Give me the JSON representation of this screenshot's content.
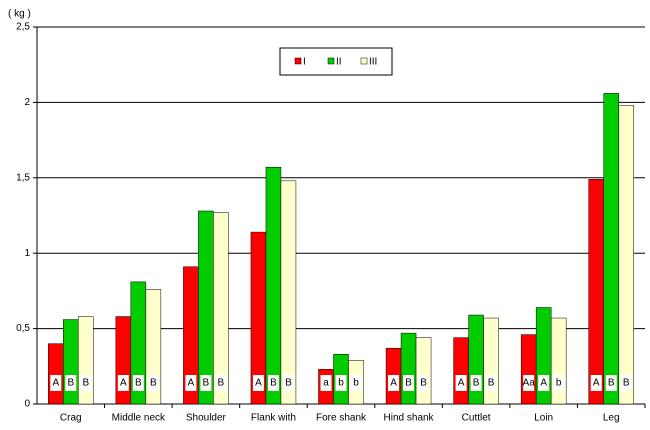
{
  "chart_data": {
    "type": "bar",
    "y_label": "( kg )",
    "categories": [
      "Crag",
      "Middle neck",
      "Shoulder",
      "Flank with",
      "Fore shank",
      "Hind shank",
      "Cuttlet",
      "Loin",
      "Leg"
    ],
    "series": [
      {
        "name": "I",
        "color": "#ff0000",
        "values": [
          0.4,
          0.58,
          0.91,
          1.14,
          0.23,
          0.37,
          0.44,
          0.46,
          1.49
        ],
        "letters": [
          "A",
          "A",
          "A",
          "A",
          "a",
          "A",
          "A",
          "Aa",
          "A"
        ]
      },
      {
        "name": "II",
        "color": "#00cc00",
        "values": [
          0.56,
          0.81,
          1.28,
          1.57,
          0.33,
          0.47,
          0.59,
          0.64,
          2.06
        ],
        "letters": [
          "B",
          "B",
          "B",
          "B",
          "b",
          "B",
          "B",
          "A",
          "B"
        ]
      },
      {
        "name": "III",
        "color": "#ffffcc",
        "values": [
          0.58,
          0.76,
          1.27,
          1.48,
          0.29,
          0.44,
          0.57,
          0.57,
          1.98
        ],
        "letters": [
          "B",
          "B",
          "B",
          "B",
          "b",
          "B",
          "B",
          "b",
          "B"
        ]
      }
    ],
    "ylim": [
      0,
      2.5
    ],
    "yticks": [
      0,
      {
        "value": 0.5,
        "label": "0,5"
      },
      1,
      {
        "value": 1.5,
        "label": "1,5"
      },
      2,
      {
        "value": 2.5,
        "label": "2,5"
      }
    ],
    "grid": true
  }
}
